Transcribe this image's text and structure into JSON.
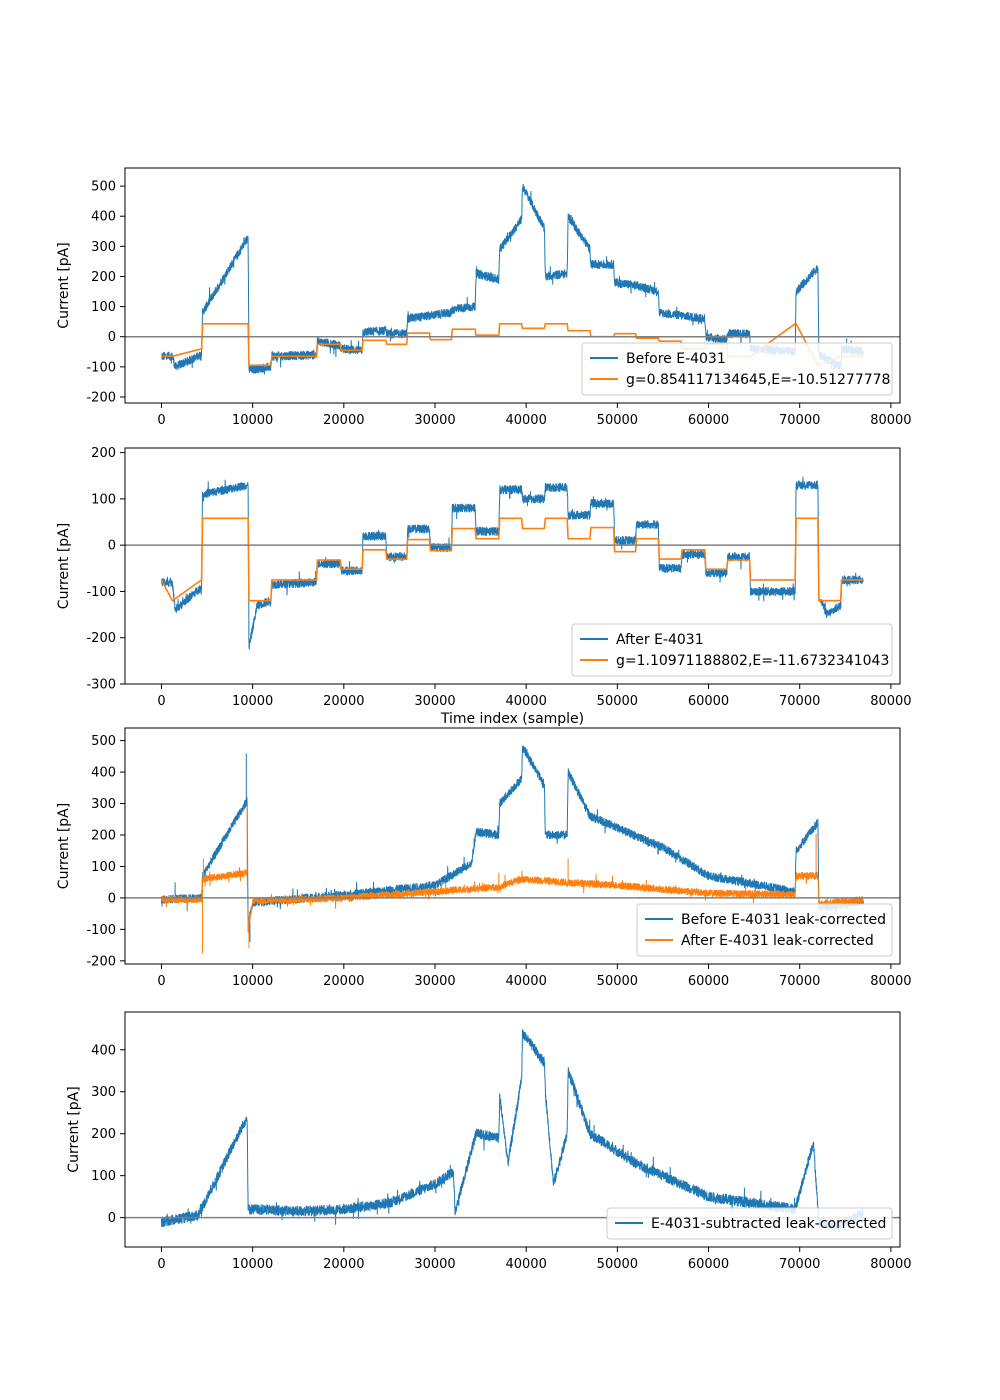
{
  "chart_data": [
    {
      "type": "line",
      "title": "",
      "xlabel": "",
      "ylabel": "Current [pA]",
      "xlim": [
        -4000,
        81000
      ],
      "ylim": [
        -220,
        560
      ],
      "xticks": [
        0,
        10000,
        20000,
        30000,
        40000,
        50000,
        60000,
        70000,
        80000
      ],
      "yticks": [
        -200,
        -100,
        0,
        100,
        200,
        300,
        400,
        500
      ],
      "zero_line": true,
      "legend_position": "lower-right",
      "series": [
        {
          "name": "Before E-4031",
          "color": "#1f77b4",
          "noise": 14,
          "x": [
            0,
            1200,
            1500,
            4400,
            4500,
            9500,
            9600,
            12000,
            12100,
            17000,
            17100,
            19600,
            19700,
            22000,
            22100,
            24600,
            24700,
            26900,
            27000,
            31800,
            31900,
            34400,
            34500,
            37000,
            37100,
            39500,
            39600,
            42000,
            42100,
            44500,
            44600,
            47000,
            47100,
            49600,
            49700,
            52000,
            52100,
            54500,
            54600,
            59600,
            59700,
            62000,
            62100,
            64500,
            64600,
            69500,
            69600,
            72000,
            72100,
            74500,
            74600,
            77000
          ],
          "y": [
            -65,
            -65,
            -100,
            -60,
            80,
            330,
            -110,
            -100,
            -65,
            -60,
            -15,
            -30,
            -40,
            -45,
            15,
            20,
            10,
            10,
            60,
            80,
            90,
            100,
            210,
            190,
            290,
            390,
            500,
            360,
            200,
            210,
            400,
            290,
            240,
            240,
            180,
            170,
            170,
            150,
            80,
            60,
            0,
            -10,
            10,
            10,
            -40,
            -50,
            150,
            230,
            -60,
            -100,
            -40,
            -50
          ]
        },
        {
          "name": "g=0.854117134645,E=-10.51277778",
          "color": "#ff7f0e",
          "noise": 0,
          "x": [
            0,
            1200,
            4400,
            4500,
            9500,
            9600,
            12000,
            12100,
            17000,
            17100,
            19600,
            19700,
            22000,
            22100,
            24600,
            24700,
            26900,
            27000,
            29400,
            29500,
            31800,
            31900,
            34400,
            34500,
            37000,
            37100,
            39500,
            39600,
            42000,
            42100,
            44500,
            44600,
            47000,
            47100,
            49600,
            49700,
            52000,
            52100,
            54500,
            54600,
            57000,
            57100,
            59600,
            59700,
            62000,
            62100,
            64500,
            64600,
            69500,
            69600,
            72000,
            72100,
            74500,
            74600,
            77000
          ],
          "y": [
            -65,
            -65,
            -40,
            43,
            43,
            -95,
            -95,
            -65,
            -65,
            -25,
            -25,
            -45,
            -45,
            -12,
            -12,
            -25,
            -25,
            12,
            12,
            -10,
            -10,
            25,
            25,
            5,
            5,
            43,
            43,
            28,
            28,
            43,
            43,
            20,
            20,
            0,
            0,
            10,
            10,
            -5,
            -5,
            -15,
            -15,
            -40,
            -40,
            -25,
            -25,
            -65,
            -65,
            -65,
            43,
            43,
            -95,
            -95,
            -65,
            -65,
            -65
          ]
        }
      ]
    },
    {
      "type": "line",
      "title": "",
      "xlabel": "Time index (sample)",
      "ylabel": "Current [pA]",
      "xlim": [
        -4000,
        81000
      ],
      "ylim": [
        -300,
        210
      ],
      "xticks": [
        0,
        10000,
        20000,
        30000,
        40000,
        50000,
        60000,
        70000,
        80000
      ],
      "yticks": [
        -300,
        -200,
        -100,
        0,
        100,
        200
      ],
      "zero_line": true,
      "legend_position": "lower-right",
      "series": [
        {
          "name": "After E-4031",
          "color": "#1f77b4",
          "noise": 9,
          "x": [
            0,
            1200,
            1500,
            4400,
            4500,
            9500,
            9600,
            10500,
            12000,
            12100,
            17000,
            17100,
            19600,
            19700,
            22000,
            22100,
            24600,
            24700,
            26900,
            27000,
            29400,
            29500,
            31800,
            31900,
            34400,
            34500,
            37000,
            37100,
            39500,
            39600,
            42000,
            42100,
            44500,
            44600,
            47000,
            47100,
            49600,
            49700,
            52000,
            52100,
            54500,
            54600,
            57000,
            57100,
            59600,
            59700,
            62000,
            62100,
            64500,
            64600,
            69500,
            69600,
            72000,
            72100,
            73000,
            74500,
            74600,
            77000
          ],
          "y": [
            -80,
            -80,
            -140,
            -90,
            110,
            130,
            -220,
            -130,
            -120,
            -85,
            -80,
            -40,
            -40,
            -55,
            -55,
            20,
            20,
            -25,
            -25,
            35,
            35,
            -5,
            -5,
            80,
            80,
            30,
            30,
            120,
            120,
            100,
            100,
            125,
            125,
            65,
            65,
            90,
            90,
            10,
            10,
            45,
            45,
            -50,
            -50,
            -20,
            -20,
            -60,
            -60,
            -25,
            -25,
            -100,
            -100,
            130,
            130,
            -110,
            -150,
            -130,
            -75,
            -75
          ]
        },
        {
          "name": "g=1.10971188802,E=-11.6732341043",
          "color": "#ff7f0e",
          "noise": 0,
          "x": [
            0,
            1200,
            4400,
            4500,
            9500,
            9600,
            12000,
            12100,
            17000,
            17100,
            19600,
            19700,
            22000,
            22100,
            24600,
            24700,
            26900,
            27000,
            29400,
            29500,
            31800,
            31900,
            34400,
            34500,
            37000,
            37100,
            39500,
            39600,
            42000,
            42100,
            44500,
            44600,
            47000,
            47100,
            49600,
            49700,
            52000,
            52100,
            54500,
            54600,
            57000,
            57100,
            59600,
            59700,
            62000,
            62100,
            64500,
            64600,
            69500,
            69600,
            72000,
            72100,
            74500,
            74600,
            77000
          ],
          "y": [
            -75,
            -120,
            -75,
            58,
            58,
            -120,
            -120,
            -75,
            -75,
            -32,
            -32,
            -52,
            -52,
            -10,
            -10,
            -30,
            -30,
            12,
            12,
            -12,
            -12,
            36,
            36,
            14,
            14,
            58,
            58,
            36,
            36,
            58,
            58,
            14,
            14,
            38,
            38,
            -14,
            -14,
            14,
            14,
            -30,
            -30,
            -10,
            -10,
            -52,
            -52,
            -32,
            -32,
            -75,
            -75,
            58,
            58,
            -120,
            -120,
            -75,
            -75
          ]
        }
      ]
    },
    {
      "type": "line",
      "title": "",
      "xlabel": "",
      "ylabel": "Current [pA]",
      "xlim": [
        -4000,
        81000
      ],
      "ylim": [
        -210,
        540
      ],
      "xticks": [
        0,
        10000,
        20000,
        30000,
        40000,
        50000,
        60000,
        70000,
        80000
      ],
      "yticks": [
        -200,
        -100,
        0,
        100,
        200,
        300,
        400,
        500
      ],
      "zero_line": true,
      "legend_position": "lower-right",
      "series": [
        {
          "name": "Before E-4031 leak-corrected",
          "color": "#1f77b4",
          "noise": 13,
          "x": [
            0,
            4400,
            4500,
            9400,
            9500,
            10000,
            20000,
            30000,
            34000,
            34500,
            37000,
            37100,
            39500,
            39600,
            42000,
            42100,
            44500,
            44600,
            47000,
            55000,
            60000,
            69500,
            69600,
            72000,
            72100,
            74000,
            77000
          ],
          "y": [
            -5,
            0,
            70,
            310,
            -80,
            -15,
            10,
            40,
            110,
            210,
            200,
            300,
            380,
            480,
            360,
            200,
            200,
            400,
            260,
            160,
            70,
            20,
            150,
            240,
            -30,
            -25,
            -10
          ],
          "spikes": [
            [
              9300,
              460
            ],
            [
              9700,
              -140
            ],
            [
              4500,
              -170
            ],
            [
              1500,
              50
            ]
          ]
        },
        {
          "name": "After E-4031 leak-corrected",
          "color": "#ff7f0e",
          "noise": 11,
          "x": [
            0,
            4400,
            4500,
            9400,
            9500,
            10000,
            20000,
            30000,
            37000,
            39500,
            44000,
            50000,
            60000,
            69500,
            69600,
            72000,
            72100,
            77000
          ],
          "y": [
            -5,
            -5,
            60,
            80,
            -100,
            -10,
            0,
            20,
            35,
            60,
            50,
            40,
            15,
            10,
            70,
            70,
            -20,
            -5
          ],
          "spikes": [
            [
              4500,
              -175
            ],
            [
              4600,
              125
            ],
            [
              9400,
              290
            ],
            [
              9600,
              -160
            ],
            [
              37000,
              80
            ],
            [
              44600,
              125
            ],
            [
              71800,
              205
            ]
          ]
        }
      ]
    },
    {
      "type": "line",
      "title": "",
      "xlabel": "",
      "ylabel": "Current [pA]",
      "xlim": [
        -4000,
        81000
      ],
      "ylim": [
        -70,
        490
      ],
      "xticks": [
        0,
        10000,
        20000,
        30000,
        40000,
        50000,
        60000,
        70000,
        80000
      ],
      "yticks": [
        0,
        100,
        200,
        300,
        400
      ],
      "zero_line": true,
      "legend_position": "lower-right",
      "series": [
        {
          "name": "E-4031-subtracted leak-corrected",
          "color": "#1f77b4",
          "noise": 12,
          "x": [
            0,
            4000,
            6000,
            8000,
            9400,
            9500,
            10000,
            15000,
            20000,
            25000,
            30000,
            32000,
            32200,
            34500,
            37000,
            37100,
            38000,
            39500,
            39600,
            42000,
            42100,
            43000,
            44500,
            44600,
            47000,
            52000,
            60000,
            69500,
            71500,
            72100,
            74000,
            77000
          ],
          "y": [
            -10,
            5,
            90,
            180,
            240,
            20,
            20,
            15,
            20,
            35,
            80,
            110,
            15,
            200,
            190,
            290,
            130,
            330,
            440,
            370,
            300,
            80,
            200,
            350,
            200,
            130,
            50,
            20,
            180,
            -10,
            -20,
            10
          ]
        }
      ]
    }
  ]
}
